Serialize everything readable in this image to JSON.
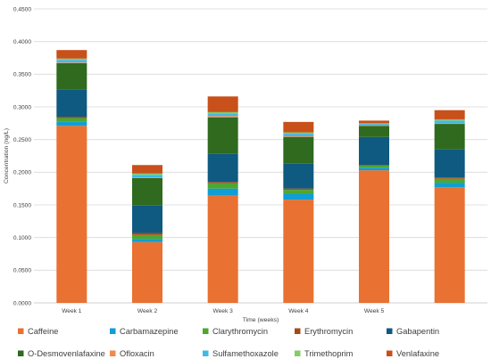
{
  "chart_data": {
    "type": "bar",
    "stacked": true,
    "xlabel": "Time (weeks)",
    "ylabel": "Concentration (ng/L)",
    "ylim": [
      0,
      0.45
    ],
    "yticks": [
      "0.0000",
      "0.0500",
      "0.1000",
      "0.1500",
      "0.2000",
      "0.2500",
      "0.3000",
      "0.3500",
      "0.4000",
      "0.4500"
    ],
    "grid": true,
    "legend": "bottom",
    "categories": [
      "Week 1",
      "Week 2",
      "Week 3",
      "Week 4",
      "Week 5",
      ""
    ],
    "series": [
      {
        "name": "Caffeine",
        "color": "#E97132",
        "values": [
          0.271,
          0.093,
          0.164,
          0.158,
          0.203,
          0.177
        ]
      },
      {
        "name": "Carbamazepine",
        "color": "#0F9ED5",
        "values": [
          0.006,
          0.005,
          0.011,
          0.009,
          0.004,
          0.007
        ]
      },
      {
        "name": "Clarythromycin",
        "color": "#4EA72E",
        "values": [
          0.006,
          0.006,
          0.008,
          0.006,
          0.003,
          0.006
        ]
      },
      {
        "name": "Erythromycin",
        "color": "#A34A18",
        "values": [
          0.002,
          0.003,
          0.002,
          0.002,
          0.001,
          0.002
        ]
      },
      {
        "name": "Gabapentin",
        "color": "#0E5A80",
        "values": [
          0.042,
          0.042,
          0.043,
          0.038,
          0.043,
          0.043
        ]
      },
      {
        "name": "O-Desmovenlafaxine",
        "color": "#2F6A1F",
        "values": [
          0.04,
          0.042,
          0.056,
          0.041,
          0.017,
          0.039
        ]
      },
      {
        "name": "Ofloxacin",
        "color": "#F08A4B",
        "values": [
          0.001,
          0.001,
          0.002,
          0.001,
          0.001,
          0.001
        ]
      },
      {
        "name": "Sulfamethoxazole",
        "color": "#3FB9EA",
        "values": [
          0.004,
          0.004,
          0.004,
          0.004,
          0.002,
          0.004
        ]
      },
      {
        "name": "Trimethoprim",
        "color": "#83CC67",
        "values": [
          0.002,
          0.002,
          0.002,
          0.002,
          0.001,
          0.002
        ]
      },
      {
        "name": "Venlafaxine",
        "color": "#C8501A",
        "values": [
          0.013,
          0.013,
          0.024,
          0.016,
          0.004,
          0.014
        ]
      }
    ]
  }
}
